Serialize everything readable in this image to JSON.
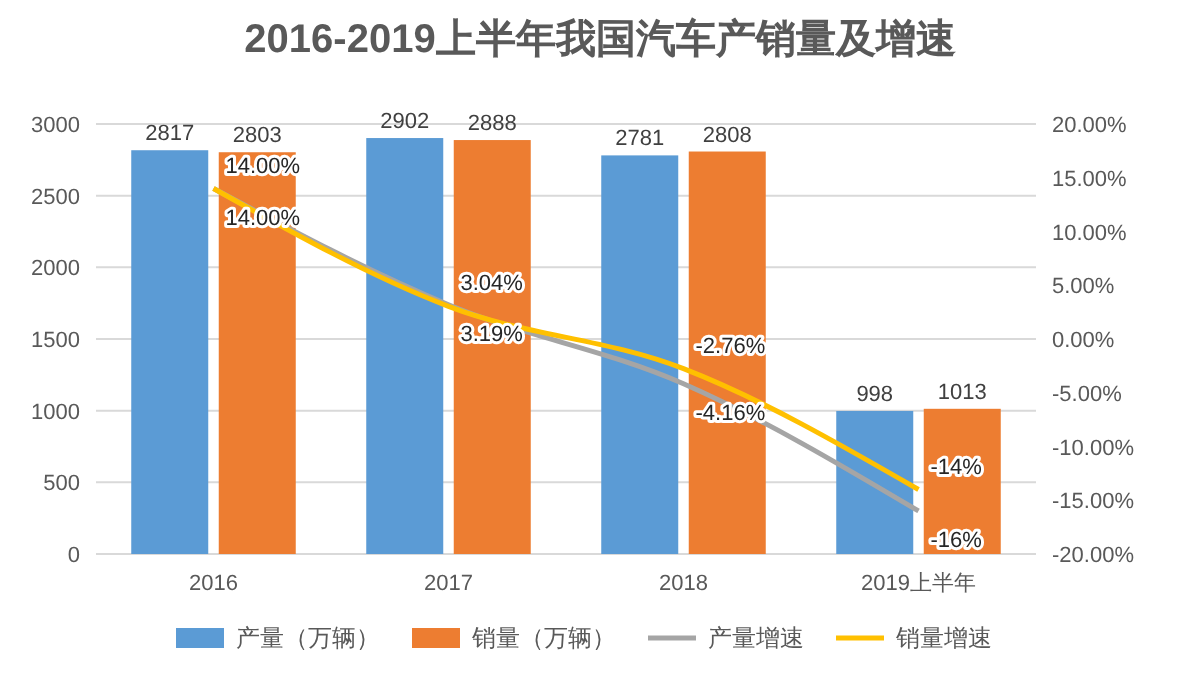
{
  "chart_data": {
    "type": "bar",
    "title": "2016-2019上半年我国汽车产销量及增速",
    "categories": [
      "2016",
      "2017",
      "2018",
      "2019上半年"
    ],
    "series": [
      {
        "name": "产量（万辆）",
        "color": "#5b9bd5",
        "values": [
          2817,
          2902,
          2781,
          998
        ]
      },
      {
        "name": "销量（万辆）",
        "color": "#ed7d31",
        "values": [
          2803,
          2888,
          2808,
          1013
        ]
      },
      {
        "name": "产量增速",
        "type": "line",
        "axis": "y2",
        "color": "#a5a5a5",
        "values": [
          14,
          3.19,
          -4.16,
          -16
        ],
        "value_labels": [
          "14.00%",
          "3.19%",
          "-4.16%",
          "-16%"
        ]
      },
      {
        "name": "销量增速",
        "type": "line",
        "axis": "y2",
        "color": "#ffc000",
        "values": [
          14,
          3.04,
          -2.76,
          -14
        ],
        "value_labels": [
          "14.00%",
          "3.04%",
          "-2.76%",
          "-14%"
        ]
      }
    ],
    "data_labels": true,
    "ylim": [
      0,
      3000
    ],
    "yticks": [
      0,
      500,
      1000,
      1500,
      2000,
      2500,
      3000
    ],
    "y2lim": [
      -20,
      20
    ],
    "y2ticks": [
      {
        "value": -20,
        "label": "-20.00%"
      },
      {
        "value": -15,
        "label": "-15.00%"
      },
      {
        "value": -10,
        "label": "-10.00%"
      },
      {
        "value": -5,
        "label": "-5.00%"
      },
      {
        "value": 0,
        "label": "0.00%"
      },
      {
        "value": 5,
        "label": "5.00%"
      },
      {
        "value": 10,
        "label": "10.00%"
      },
      {
        "value": 15,
        "label": "15.00%"
      },
      {
        "value": 20,
        "label": "20.00%"
      }
    ],
    "grid": "y",
    "legend": "bottom"
  }
}
